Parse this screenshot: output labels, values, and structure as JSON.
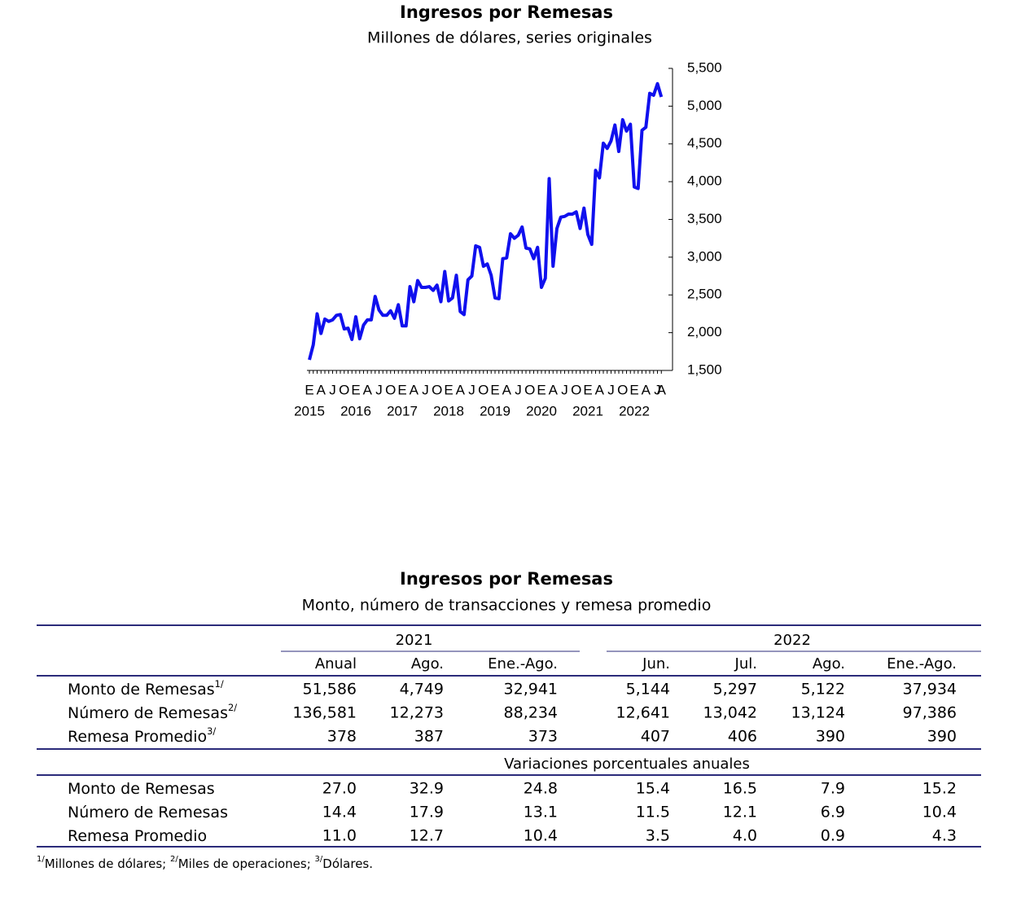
{
  "chart_data": {
    "type": "line",
    "title": "Ingresos por Remesas",
    "subtitle": "Millones de dólares, series originales",
    "categories": [
      "E",
      null,
      null,
      "A",
      null,
      null,
      "J",
      null,
      null,
      "O",
      null,
      null,
      "E",
      null,
      null,
      "A",
      null,
      null,
      "J",
      null,
      null,
      "O",
      null,
      null,
      "E",
      null,
      null,
      "A",
      null,
      null,
      "J",
      null,
      null,
      "O",
      null,
      null,
      "E",
      null,
      null,
      "A",
      null,
      null,
      "J",
      null,
      null,
      "O",
      null,
      null,
      "E",
      null,
      null,
      "A",
      null,
      null,
      "J",
      null,
      null,
      "O",
      null,
      null,
      "E",
      null,
      null,
      "A",
      null,
      null,
      "J",
      null,
      null,
      "O",
      null,
      null,
      "E",
      null,
      null,
      "A",
      null,
      null,
      "J",
      null,
      null,
      "O",
      null,
      null,
      "E",
      null,
      null,
      "A",
      null,
      null,
      "J",
      "A"
    ],
    "category_groups": [
      "2015",
      "2016",
      "2017",
      "2018",
      "2019",
      "2020",
      "2021",
      "2022"
    ],
    "color": "#1010ee",
    "values": [
      1640,
      1840,
      2250,
      1990,
      2180,
      2150,
      2170,
      2230,
      2240,
      2050,
      2060,
      1910,
      2210,
      1920,
      2100,
      2170,
      2170,
      2480,
      2300,
      2230,
      2230,
      2290,
      2190,
      2370,
      2090,
      2090,
      2610,
      2410,
      2690,
      2600,
      2600,
      2610,
      2560,
      2630,
      2410,
      2810,
      2420,
      2460,
      2760,
      2280,
      2240,
      2700,
      2750,
      3150,
      3130,
      2880,
      2910,
      2760,
      2460,
      2450,
      2980,
      2990,
      3310,
      3250,
      3290,
      3400,
      3120,
      3110,
      2980,
      3130,
      2600,
      2720,
      4040,
      2880,
      3380,
      3530,
      3540,
      3570,
      3570,
      3600,
      3380,
      3650,
      3300,
      3170,
      4150,
      4050,
      4510,
      4440,
      4540,
      4750,
      4400,
      4820,
      4670,
      4760,
      3930,
      3910,
      4680,
      4720,
      5170,
      5144,
      5297,
      5122
    ],
    "ylim": [
      1500,
      5500
    ],
    "yticks": [
      {
        "value": 1500,
        "label": "1,500"
      },
      {
        "value": 2000,
        "label": "2,000"
      },
      {
        "value": 2500,
        "label": "2,500"
      },
      {
        "value": 3000,
        "label": "3,000"
      },
      {
        "value": 3500,
        "label": "3,500"
      },
      {
        "value": 4000,
        "label": "4,000"
      },
      {
        "value": 4500,
        "label": "4,500"
      },
      {
        "value": 5000,
        "label": "5,000"
      },
      {
        "value": 5500,
        "label": "5,500"
      }
    ]
  },
  "table": {
    "title": "Ingresos por Remesas",
    "subtitle": "Monto, número de transacciones y remesa promedio",
    "groups": [
      {
        "label": "2021",
        "columns": [
          "Anual",
          "Ago.",
          "Ene.-Ago."
        ]
      },
      {
        "label": "2022",
        "columns": [
          "Jun.",
          "Jul.",
          "Ago.",
          "Ene.-Ago."
        ]
      }
    ],
    "sections": [
      {
        "rows": [
          {
            "label": "Monto de Remesas",
            "note": "1/",
            "cells": [
              "51,586",
              "4,749",
              "32,941",
              "5,144",
              "5,297",
              "5,122",
              "37,934"
            ]
          },
          {
            "label": "Número de Remesas",
            "note": "2/",
            "cells": [
              "136,581",
              "12,273",
              "88,234",
              "12,641",
              "13,042",
              "13,124",
              "97,386"
            ]
          },
          {
            "label": "Remesa Promedio",
            "note": "3/",
            "cells": [
              "378",
              "387",
              "373",
              "407",
              "406",
              "390",
              "390"
            ]
          }
        ]
      },
      {
        "heading": "Variaciones porcentuales anuales",
        "rows": [
          {
            "label": "Monto de Remesas",
            "cells": [
              "27.0",
              "32.9",
              "24.8",
              "15.4",
              "16.5",
              "7.9",
              "15.2"
            ]
          },
          {
            "label": "Número de Remesas",
            "cells": [
              "14.4",
              "17.9",
              "13.1",
              "11.5",
              "12.1",
              "6.9",
              "10.4"
            ]
          },
          {
            "label": "Remesa Promedio",
            "cells": [
              "11.0",
              "12.7",
              "10.4",
              "3.5",
              "4.0",
              "0.9",
              "4.3"
            ]
          }
        ]
      }
    ],
    "footnote": [
      {
        "note": "1/",
        "text": "Millones de dólares; "
      },
      {
        "note": "2/",
        "text": "Miles de operaciones; "
      },
      {
        "note": "3/",
        "text": "Dólares."
      }
    ]
  }
}
